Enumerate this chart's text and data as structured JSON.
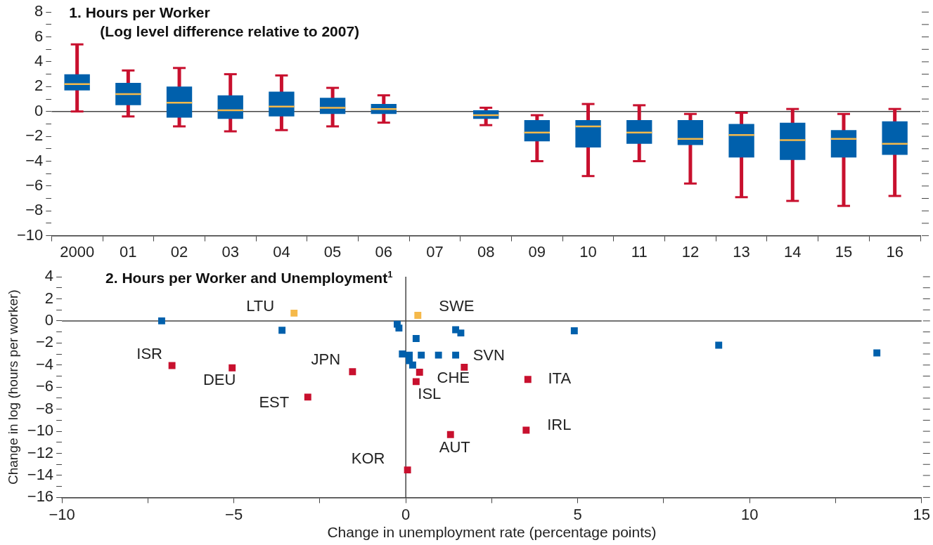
{
  "chart_data": [
    {
      "type": "box",
      "title": "1. Hours per Worker",
      "subtitle": "(Log level difference relative to 2007)",
      "categories": [
        "2000",
        "01",
        "02",
        "03",
        "04",
        "05",
        "06",
        "07",
        "08",
        "09",
        "10",
        "11",
        "12",
        "13",
        "14",
        "15",
        "16"
      ],
      "color": "#0060ac",
      "boxes": [
        {
          "low": 0,
          "q1": 1.7,
          "median": 2.2,
          "q3": 3.0,
          "high": 5.4
        },
        {
          "low": -0.4,
          "q1": 0.5,
          "median": 1.4,
          "q3": 2.3,
          "high": 3.3
        },
        {
          "low": -1.2,
          "q1": -0.5,
          "median": 0.7,
          "q3": 2.0,
          "high": 3.5
        },
        {
          "low": -1.6,
          "q1": -0.6,
          "median": 0.1,
          "q3": 1.3,
          "high": 3.0
        },
        {
          "low": -1.5,
          "q1": -0.4,
          "median": 0.4,
          "q3": 1.6,
          "high": 2.9
        },
        {
          "low": -1.2,
          "q1": -0.2,
          "median": 0.3,
          "q3": 1.1,
          "high": 1.9
        },
        {
          "low": -0.9,
          "q1": -0.2,
          "median": 0.2,
          "q3": 0.6,
          "high": 1.3
        },
        null,
        {
          "low": -1.1,
          "q1": -0.6,
          "median": -0.3,
          "q3": 0.1,
          "high": 0.3
        },
        {
          "low": -4.0,
          "q1": -2.4,
          "median": -1.7,
          "q3": -0.7,
          "high": -0.3
        },
        {
          "low": -5.2,
          "q1": -2.9,
          "median": -1.2,
          "q3": -0.7,
          "high": 0.6
        },
        {
          "low": -4.0,
          "q1": -2.6,
          "median": -1.7,
          "q3": -0.7,
          "high": 0.5
        },
        {
          "low": -5.8,
          "q1": -2.7,
          "median": -2.2,
          "q3": -0.7,
          "high": -0.2
        },
        {
          "low": -6.9,
          "q1": -3.7,
          "median": -1.9,
          "q3": -1.0,
          "high": -0.1
        },
        {
          "low": -7.2,
          "q1": -3.9,
          "median": -2.3,
          "q3": -0.9,
          "high": 0.2
        },
        {
          "low": -7.6,
          "q1": -3.7,
          "median": -2.2,
          "q3": -1.5,
          "high": -0.2
        },
        {
          "low": -6.8,
          "q1": -3.5,
          "median": -2.6,
          "q3": -0.8,
          "high": 0.2
        }
      ],
      "ylim": [
        -10,
        8
      ],
      "yticks": [
        -10,
        {
          "value": -9,
          "label": null
        },
        -8,
        {
          "value": -7,
          "label": null
        },
        -6,
        {
          "value": -5,
          "label": null
        },
        -4,
        {
          "value": -3,
          "label": null
        },
        -2,
        {
          "value": -1,
          "label": null
        },
        0,
        {
          "value": 1,
          "label": null
        },
        2,
        {
          "value": 3,
          "label": null
        },
        4,
        {
          "value": 5,
          "label": null
        },
        6,
        {
          "value": 7,
          "label": null
        },
        8
      ],
      "ref_lines": [
        {
          "axis": "y",
          "value": 0
        }
      ],
      "grid": false,
      "legend": false
    },
    {
      "type": "scatter",
      "title": "2. Hours per Worker and Unemployment$^{1}$",
      "xlabel": "Change in unemployment rate (percentage points)",
      "ylabel": "Change in log (hours per worker)",
      "marker": "square",
      "series": [
        {
          "color": "#0060ac",
          "x": [
            -7.1,
            -3.6,
            -0.25,
            -0.2,
            0.3,
            1.45,
            1.6,
            4.9,
            9.1,
            13.7,
            -0.1,
            0.1,
            0.45,
            0.95,
            1.45,
            0.1,
            0.2
          ],
          "values": [
            0,
            -0.85,
            -0.3,
            -0.65,
            -1.6,
            -0.8,
            -1.1,
            -0.9,
            -2.2,
            -2.9,
            -3.0,
            -3.1,
            -3.1,
            -3.1,
            -3.1,
            -3.6,
            -4.0
          ]
        },
        {
          "color": "#c8102e",
          "x": [
            -6.8,
            -5.05,
            -2.85,
            -1.55,
            0.05,
            1.7,
            0.4,
            0.3,
            3.55,
            3.5,
            1.3
          ],
          "values": [
            -4.05,
            -4.25,
            -6.9,
            -4.6,
            -13.5,
            -4.2,
            -4.65,
            -5.5,
            -5.3,
            -9.9,
            -10.3
          ]
        },
        {
          "color": "#f5b94a",
          "x": [
            -3.25,
            0.35
          ],
          "values": [
            0.7,
            0.5
          ]
        }
      ],
      "annotations": [
        {
          "text": "LTU",
          "x": -3.25,
          "y": 0.7
        },
        {
          "text": "SWE",
          "x": 0.35,
          "y": 0.5
        },
        {
          "text": "ISR",
          "x": -6.8,
          "y": -4.05
        },
        {
          "text": "DEU",
          "x": -5.05,
          "y": -4.25
        },
        {
          "text": "JPN",
          "x": -1.55,
          "y": -4.6
        },
        {
          "text": "EST",
          "x": -2.85,
          "y": -6.9
        },
        {
          "text": "SVN",
          "x": 1.7,
          "y": -4.2
        },
        {
          "text": "CHE",
          "x": 0.4,
          "y": -4.65
        },
        {
          "text": "ISL",
          "x": 0.3,
          "y": -5.5
        },
        {
          "text": "ITA",
          "x": 3.55,
          "y": -5.3
        },
        {
          "text": "IRL",
          "x": 3.5,
          "y": -9.9
        },
        {
          "text": "AUT",
          "x": 1.3,
          "y": -10.3
        },
        {
          "text": "KOR",
          "x": 0.05,
          "y": -13.5
        }
      ],
      "xlim": [
        -10,
        15
      ],
      "xticks": [
        -10,
        {
          "value": -7.5,
          "label": null
        },
        -5,
        {
          "value": -2.5,
          "label": null
        },
        0,
        {
          "value": 2.5,
          "label": null
        },
        5,
        {
          "value": 7.5,
          "label": null
        },
        10,
        {
          "value": 12.5,
          "label": null
        },
        15
      ],
      "ylim": [
        -16,
        4
      ],
      "yticks": [
        -16,
        {
          "value": -15,
          "label": null
        },
        -14,
        {
          "value": -13,
          "label": null
        },
        -12,
        {
          "value": -11,
          "label": null
        },
        -10,
        {
          "value": -9,
          "label": null
        },
        -8,
        {
          "value": -7,
          "label": null
        },
        -6,
        {
          "value": -5,
          "label": null
        },
        -4,
        {
          "value": -3,
          "label": null
        },
        -2,
        {
          "value": -1,
          "label": null
        },
        0,
        {
          "value": 1,
          "label": null
        },
        2,
        {
          "value": 3,
          "label": null
        },
        4
      ],
      "ref_lines": [
        {
          "axis": "y",
          "value": 0
        },
        {
          "axis": "x",
          "value": 0
        }
      ],
      "grid": false,
      "legend": false
    }
  ]
}
